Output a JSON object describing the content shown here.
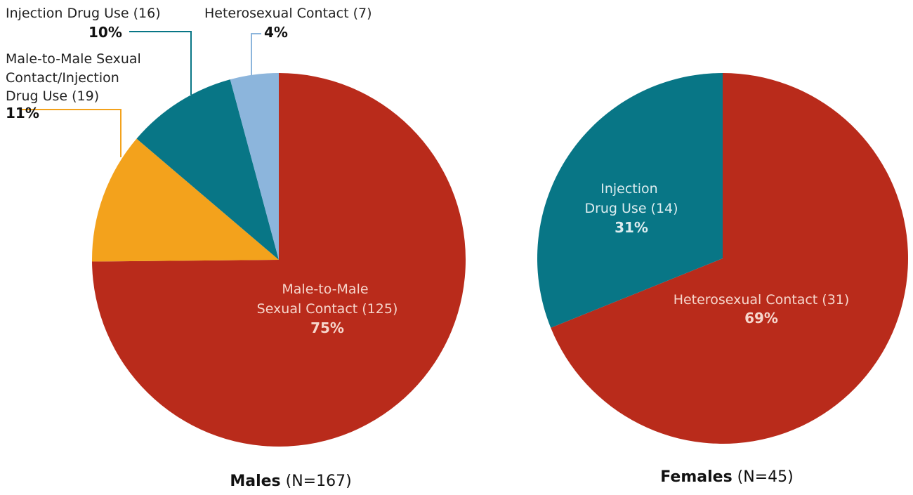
{
  "chart_data": [
    {
      "type": "pie",
      "caption": {
        "bold": "Males",
        "rest": " (N=167)"
      },
      "slices": [
        {
          "label_lines": [
            "Male-to-Male",
            "Sexual Contact (125)"
          ],
          "count": 125,
          "percent_label": "75%",
          "value": 75,
          "color": "#b92b1b"
        },
        {
          "label_lines": [
            "Male-to-Male Sexual",
            "Contact/Injection",
            "Drug Use (19)"
          ],
          "count": 19,
          "percent_label": "11%",
          "value": 11,
          "color": "#f3a21c"
        },
        {
          "label_lines": [
            "Injection Drug Use  (16)"
          ],
          "count": 16,
          "percent_label": "10%",
          "value": 10,
          "color": "#087686"
        },
        {
          "label_lines": [
            "Heterosexual Contact (7)"
          ],
          "count": 7,
          "percent_label": "4%",
          "value": 4,
          "color": "#8cb5dc"
        }
      ]
    },
    {
      "type": "pie",
      "caption": {
        "bold": "Females",
        "rest": " (N=45)"
      },
      "slices": [
        {
          "label_lines": [
            "Heterosexual Contact (31)"
          ],
          "count": 31,
          "percent_label": "69%",
          "value": 69,
          "color": "#b92b1b"
        },
        {
          "label_lines": [
            "Injection",
            "Drug Use (14)"
          ],
          "count": 14,
          "percent_label": "31%",
          "value": 31,
          "color": "#087686"
        }
      ]
    }
  ]
}
